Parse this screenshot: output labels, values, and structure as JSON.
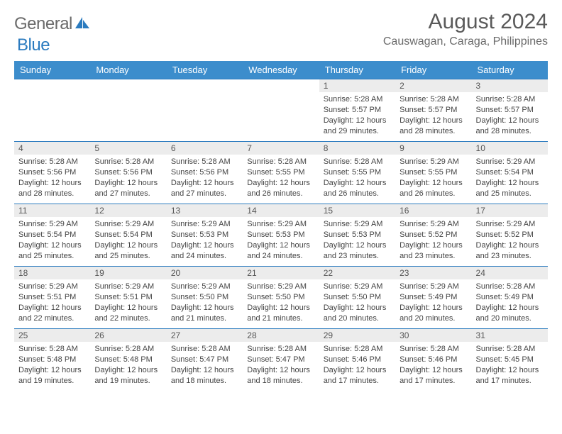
{
  "logo": {
    "text1": "General",
    "text2": "Blue"
  },
  "title": "August 2024",
  "location": "Causwagan, Caraga, Philippines",
  "colors": {
    "header_bg": "#3c8dcc",
    "header_text": "#ffffff",
    "border": "#2b7bbf",
    "daynum_bg": "#ececec",
    "text": "#444444",
    "logo_gray": "#6a6a6a",
    "logo_blue": "#2b7bbf"
  },
  "daysOfWeek": [
    "Sunday",
    "Monday",
    "Tuesday",
    "Wednesday",
    "Thursday",
    "Friday",
    "Saturday"
  ],
  "weeks": [
    [
      null,
      null,
      null,
      null,
      {
        "n": "1",
        "sr": "5:28 AM",
        "ss": "5:57 PM",
        "dl": "12 hours and 29 minutes."
      },
      {
        "n": "2",
        "sr": "5:28 AM",
        "ss": "5:57 PM",
        "dl": "12 hours and 28 minutes."
      },
      {
        "n": "3",
        "sr": "5:28 AM",
        "ss": "5:57 PM",
        "dl": "12 hours and 28 minutes."
      }
    ],
    [
      {
        "n": "4",
        "sr": "5:28 AM",
        "ss": "5:56 PM",
        "dl": "12 hours and 28 minutes."
      },
      {
        "n": "5",
        "sr": "5:28 AM",
        "ss": "5:56 PM",
        "dl": "12 hours and 27 minutes."
      },
      {
        "n": "6",
        "sr": "5:28 AM",
        "ss": "5:56 PM",
        "dl": "12 hours and 27 minutes."
      },
      {
        "n": "7",
        "sr": "5:28 AM",
        "ss": "5:55 PM",
        "dl": "12 hours and 26 minutes."
      },
      {
        "n": "8",
        "sr": "5:28 AM",
        "ss": "5:55 PM",
        "dl": "12 hours and 26 minutes."
      },
      {
        "n": "9",
        "sr": "5:29 AM",
        "ss": "5:55 PM",
        "dl": "12 hours and 26 minutes."
      },
      {
        "n": "10",
        "sr": "5:29 AM",
        "ss": "5:54 PM",
        "dl": "12 hours and 25 minutes."
      }
    ],
    [
      {
        "n": "11",
        "sr": "5:29 AM",
        "ss": "5:54 PM",
        "dl": "12 hours and 25 minutes."
      },
      {
        "n": "12",
        "sr": "5:29 AM",
        "ss": "5:54 PM",
        "dl": "12 hours and 25 minutes."
      },
      {
        "n": "13",
        "sr": "5:29 AM",
        "ss": "5:53 PM",
        "dl": "12 hours and 24 minutes."
      },
      {
        "n": "14",
        "sr": "5:29 AM",
        "ss": "5:53 PM",
        "dl": "12 hours and 24 minutes."
      },
      {
        "n": "15",
        "sr": "5:29 AM",
        "ss": "5:53 PM",
        "dl": "12 hours and 23 minutes."
      },
      {
        "n": "16",
        "sr": "5:29 AM",
        "ss": "5:52 PM",
        "dl": "12 hours and 23 minutes."
      },
      {
        "n": "17",
        "sr": "5:29 AM",
        "ss": "5:52 PM",
        "dl": "12 hours and 23 minutes."
      }
    ],
    [
      {
        "n": "18",
        "sr": "5:29 AM",
        "ss": "5:51 PM",
        "dl": "12 hours and 22 minutes."
      },
      {
        "n": "19",
        "sr": "5:29 AM",
        "ss": "5:51 PM",
        "dl": "12 hours and 22 minutes."
      },
      {
        "n": "20",
        "sr": "5:29 AM",
        "ss": "5:50 PM",
        "dl": "12 hours and 21 minutes."
      },
      {
        "n": "21",
        "sr": "5:29 AM",
        "ss": "5:50 PM",
        "dl": "12 hours and 21 minutes."
      },
      {
        "n": "22",
        "sr": "5:29 AM",
        "ss": "5:50 PM",
        "dl": "12 hours and 20 minutes."
      },
      {
        "n": "23",
        "sr": "5:29 AM",
        "ss": "5:49 PM",
        "dl": "12 hours and 20 minutes."
      },
      {
        "n": "24",
        "sr": "5:28 AM",
        "ss": "5:49 PM",
        "dl": "12 hours and 20 minutes."
      }
    ],
    [
      {
        "n": "25",
        "sr": "5:28 AM",
        "ss": "5:48 PM",
        "dl": "12 hours and 19 minutes."
      },
      {
        "n": "26",
        "sr": "5:28 AM",
        "ss": "5:48 PM",
        "dl": "12 hours and 19 minutes."
      },
      {
        "n": "27",
        "sr": "5:28 AM",
        "ss": "5:47 PM",
        "dl": "12 hours and 18 minutes."
      },
      {
        "n": "28",
        "sr": "5:28 AM",
        "ss": "5:47 PM",
        "dl": "12 hours and 18 minutes."
      },
      {
        "n": "29",
        "sr": "5:28 AM",
        "ss": "5:46 PM",
        "dl": "12 hours and 17 minutes."
      },
      {
        "n": "30",
        "sr": "5:28 AM",
        "ss": "5:46 PM",
        "dl": "12 hours and 17 minutes."
      },
      {
        "n": "31",
        "sr": "5:28 AM",
        "ss": "5:45 PM",
        "dl": "12 hours and 17 minutes."
      }
    ]
  ],
  "labels": {
    "sunrise": "Sunrise:",
    "sunset": "Sunset:",
    "daylight": "Daylight:"
  }
}
